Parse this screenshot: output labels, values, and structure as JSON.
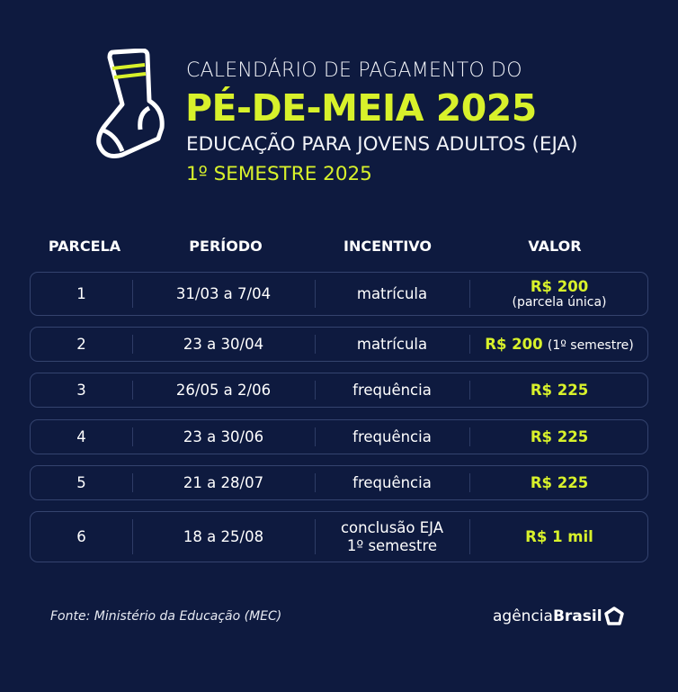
{
  "title": {
    "line1": "CALENDÁRIO DE PAGAMENTO DO",
    "line2": "PÉ-DE-MEIA 2025",
    "line3": "EDUCAÇÃO PARA JOVENS ADULTOS (EJA)",
    "line4": "1º SEMESTRE 2025"
  },
  "icon": "sock-icon",
  "colors": {
    "background": "#0e1a3f",
    "accent": "#d8f12b",
    "border": "#34436e"
  },
  "headers": [
    "PARCELA",
    "PERÍODO",
    "INCENTIVO",
    "VALOR"
  ],
  "rows": [
    {
      "parcela": "1",
      "periodo": "31/03 a 7/04",
      "incentivo": "matrícula",
      "incentivo2": "",
      "valor": "R$ 200",
      "valor_note": "(parcela única)"
    },
    {
      "parcela": "2",
      "periodo": "23 a 30/04",
      "incentivo": "matrícula",
      "incentivo2": "",
      "valor": "R$ 200",
      "valor_note": "(1º semestre)"
    },
    {
      "parcela": "3",
      "periodo": "26/05 a 2/06",
      "incentivo": "frequência",
      "incentivo2": "",
      "valor": "R$ 225",
      "valor_note": ""
    },
    {
      "parcela": "4",
      "periodo": "23 a 30/06",
      "incentivo": "frequência",
      "incentivo2": "",
      "valor": "R$ 225",
      "valor_note": ""
    },
    {
      "parcela": "5",
      "periodo": "21 a 28/07",
      "incentivo": "frequência",
      "incentivo2": "",
      "valor": "R$ 225",
      "valor_note": ""
    },
    {
      "parcela": "6",
      "periodo": "18 a 25/08",
      "incentivo": "conclusão EJA",
      "incentivo2": "1º semestre",
      "valor": "R$ 1 mil",
      "valor_note": ""
    }
  ],
  "footer": {
    "source": "Fonte: Ministério da Educação (MEC)",
    "logo_light": "agência",
    "logo_bold": "Brasil"
  }
}
